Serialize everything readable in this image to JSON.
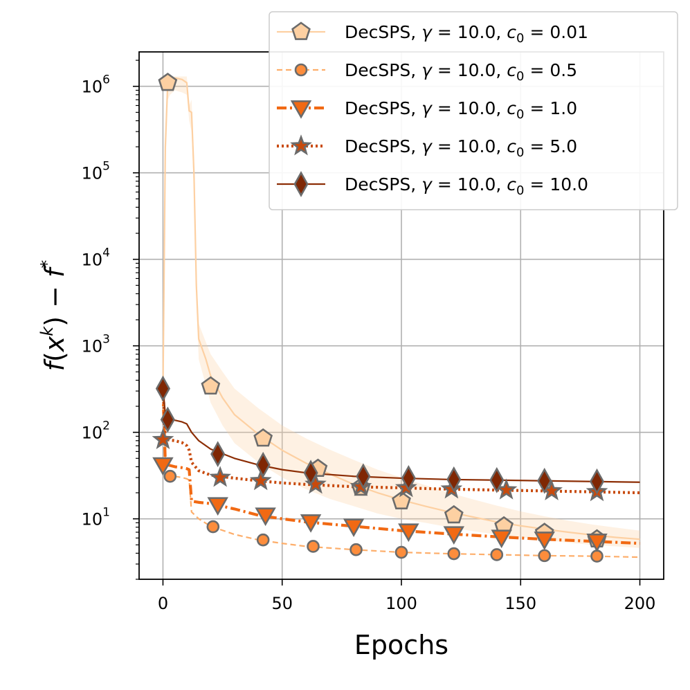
{
  "chart_data": {
    "type": "line",
    "title": "",
    "xlabel": "Epochs",
    "ylabel": "f(x^k) − f*",
    "yscale": "log",
    "xlim": [
      -10,
      210
    ],
    "ylim": [
      2,
      2500000.0
    ],
    "x_ticks": [
      0,
      50,
      100,
      150,
      200
    ],
    "x_tick_labels": [
      "0",
      "50",
      "100",
      "150",
      "200"
    ],
    "y_ticks": [
      10,
      100,
      1000,
      10000,
      100000,
      1000000
    ],
    "y_tick_labels": [
      {
        "base": "10",
        "exp": "1"
      },
      {
        "base": "10",
        "exp": "2"
      },
      {
        "base": "10",
        "exp": "3"
      },
      {
        "base": "10",
        "exp": "4"
      },
      {
        "base": "10",
        "exp": "5"
      },
      {
        "base": "10",
        "exp": "6"
      }
    ],
    "grid": true,
    "legend_position": "top-right",
    "series": [
      {
        "name": "DecSPS, γ = 10.0, c0 = 0.01",
        "legend": {
          "prefix": "DecSPS, ",
          "gamma": "γ",
          "gamma_eq": " = 10.0, ",
          "c": "c",
          "c_sub": "0",
          "c_eq": " = 0.01"
        },
        "color": "#fdd0a2",
        "line_color": "#fdd0a2",
        "marker": "pentagon",
        "marker_color": "#fdd0a2",
        "line_style": "solid",
        "band": true,
        "x": [
          0,
          1,
          2,
          3,
          5,
          8,
          10,
          11,
          12,
          13,
          14,
          15,
          18,
          20,
          25,
          30,
          40,
          50,
          60,
          70,
          80,
          90,
          100,
          110,
          120,
          130,
          140,
          150,
          160,
          170,
          180,
          190,
          200
        ],
        "y": [
          300,
          200000,
          1100000,
          1200000,
          1250000,
          1200000,
          1100000,
          520000,
          500000,
          100000,
          5000,
          1200,
          700,
          450,
          250,
          160,
          95,
          62,
          44,
          33,
          25,
          20,
          16.5,
          14,
          12,
          10.5,
          9.2,
          8.3,
          7.6,
          7.0,
          6.5,
          6.1,
          5.8
        ],
        "y_low": [
          200,
          100000,
          700000,
          800000,
          900000,
          850000,
          800000,
          400000,
          300000,
          60000,
          3000,
          700,
          350,
          220,
          120,
          75,
          45,
          30,
          22,
          17,
          14,
          11.5,
          10,
          9,
          8,
          7.2,
          6.6,
          6.1,
          5.7,
          5.3,
          5.0,
          4.8,
          4.6
        ],
        "y_high": [
          400,
          300000,
          1300000,
          1300000,
          1300000,
          1300000,
          1300000,
          600000,
          700000,
          150000,
          8000,
          1800,
          1100,
          800,
          500,
          320,
          190,
          120,
          85,
          63,
          48,
          37,
          30,
          24.5,
          20,
          16.8,
          14.2,
          12.2,
          10.7,
          9.5,
          8.6,
          7.9,
          7.3
        ],
        "marker_x": [
          2,
          20,
          42,
          65,
          83,
          100,
          122,
          143,
          160,
          182
        ],
        "marker_y": [
          1100000,
          340,
          85,
          38,
          23,
          16,
          11,
          8.2,
          6.9,
          5.8
        ]
      },
      {
        "name": "DecSPS, γ = 10.0, c0 = 0.5",
        "legend": {
          "prefix": "DecSPS, ",
          "gamma": "γ",
          "gamma_eq": " = 10.0, ",
          "c": "c",
          "c_sub": "0",
          "c_eq": " = 0.5"
        },
        "color": "#fdae6b",
        "line_color": "#fdae6b",
        "marker": "circle",
        "marker_color": "#fd8d3c",
        "line_style": "dashed",
        "band": false,
        "x": [
          0,
          1,
          2,
          3,
          5,
          8,
          10,
          11,
          12,
          15,
          20,
          30,
          40,
          50,
          60,
          80,
          100,
          120,
          140,
          160,
          180,
          200
        ],
        "y": [
          300,
          45,
          35,
          32,
          31,
          30,
          29,
          28,
          12,
          10,
          8.2,
          6.6,
          5.7,
          5.2,
          4.8,
          4.4,
          4.1,
          3.95,
          3.85,
          3.75,
          3.7,
          3.6
        ],
        "marker_x": [
          3,
          21,
          42,
          63,
          81,
          100,
          122,
          140,
          160,
          182
        ],
        "marker_y": [
          31,
          8.1,
          5.7,
          4.8,
          4.4,
          4.1,
          3.95,
          3.85,
          3.75,
          3.7
        ]
      },
      {
        "name": "DecSPS, γ = 10.0, c0 = 1.0",
        "legend": {
          "prefix": "DecSPS, ",
          "gamma": "γ",
          "gamma_eq": " = 10.0, ",
          "c": "c",
          "c_sub": "0",
          "c_eq": " = 1.0"
        },
        "color": "#f16913",
        "line_color": "#f16913",
        "marker": "triangle-down",
        "marker_color": "#f16913",
        "line_style": "dashdot",
        "band": false,
        "x": [
          0,
          1,
          2,
          5,
          8,
          10,
          11,
          12,
          15,
          20,
          30,
          40,
          50,
          60,
          80,
          100,
          120,
          140,
          160,
          180,
          200
        ],
        "y": [
          300,
          45,
          42,
          40,
          39,
          38,
          37,
          16,
          15.5,
          15,
          13,
          11,
          10,
          9.2,
          8.2,
          7.3,
          6.7,
          6.2,
          5.8,
          5.5,
          5.2
        ],
        "marker_x": [
          0,
          23,
          43,
          62,
          80,
          103,
          122,
          142,
          160,
          182
        ],
        "marker_y": [
          42,
          14.5,
          11,
          9.2,
          8.2,
          7.2,
          6.7,
          6.1,
          5.8,
          5.5
        ]
      },
      {
        "name": "DecSPS, γ = 10.0, c0 = 5.0",
        "legend": {
          "prefix": "DecSPS, ",
          "gamma": "γ",
          "gamma_eq": " = 10.0, ",
          "c": "c",
          "c_sub": "0",
          "c_eq": " = 5.0"
        },
        "color": "#c84a0c",
        "line_color": "#c84a0c",
        "marker": "star",
        "marker_color": "#c84a0c",
        "line_style": "dotted",
        "band": false,
        "x": [
          0,
          1,
          2,
          5,
          8,
          10,
          11,
          12,
          15,
          20,
          30,
          40,
          50,
          60,
          80,
          100,
          120,
          140,
          160,
          180,
          200
        ],
        "y": [
          330,
          85,
          82,
          80,
          76,
          70,
          62,
          45,
          36,
          32,
          29.5,
          27.5,
          26,
          25,
          23.5,
          22.8,
          22,
          21.5,
          21,
          20.5,
          20
        ],
        "marker_x": [
          0,
          24,
          41,
          64,
          83,
          102,
          121,
          144,
          163,
          182
        ],
        "marker_y": [
          82,
          30,
          27.5,
          25,
          23.5,
          22.8,
          22,
          21.5,
          21,
          20.5
        ]
      },
      {
        "name": "DecSPS, γ = 10.0, c0 = 10.0",
        "legend": {
          "prefix": "DecSPS, ",
          "gamma": "γ",
          "gamma_eq": " = 10.0, ",
          "c": "c",
          "c_sub": "0",
          "c_eq": " = 10.0"
        },
        "color": "#7f2704",
        "line_color": "#8c2d04",
        "marker": "diamond",
        "marker_color": "#7f2704",
        "line_style": "solid",
        "band": false,
        "x": [
          0,
          1,
          2,
          5,
          8,
          10,
          12,
          15,
          20,
          30,
          40,
          50,
          60,
          80,
          100,
          120,
          140,
          160,
          180,
          200
        ],
        "y": [
          330,
          160,
          145,
          138,
          132,
          125,
          100,
          80,
          64,
          50,
          42,
          37,
          34,
          31,
          29.5,
          28.5,
          28,
          27.5,
          27,
          26.5
        ],
        "marker_x": [
          0,
          2,
          23,
          42,
          62,
          84,
          103,
          122,
          140,
          160,
          182
        ],
        "marker_y": [
          320,
          140,
          56,
          42,
          34,
          31,
          29.5,
          28.5,
          28,
          27.5,
          27
        ]
      }
    ]
  }
}
